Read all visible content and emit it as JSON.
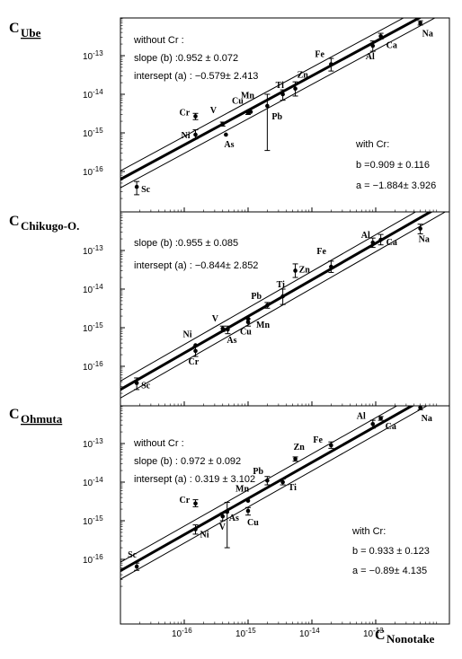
{
  "figure": {
    "xlabel_main": "C",
    "xlabel_sub": "Nonotake"
  },
  "chart_data": [
    {
      "type": "scatter",
      "ylabel_main": "C",
      "ylabel_sub": "Ube",
      "ylabel_underline": true,
      "x_scale": "log",
      "y_scale": "log",
      "xlim": [
        1e-17,
        1e-12
      ],
      "ylim": [
        1e-17,
        1e-12
      ],
      "x_tick_labels": [
        "10^-16",
        "10^-15",
        "10^-14",
        "10^-13"
      ],
      "y_tick_labels": [
        "10^-13",
        "10^-14",
        "10^-15",
        "10^-16"
      ],
      "annotations": [
        "without Cr :",
        "slope (b)      :0.952  ± 0.072",
        "intersept (a) : −0.579± 2.413",
        "with Cr:",
        "b =0.909  ± 0.116",
        "a = −1.884± 3.926"
      ],
      "points": [
        {
          "label": "Sc",
          "x": 1.8e-17,
          "y": 4e-17,
          "ylo": 2.5e-17,
          "yhi": 5.5e-17
        },
        {
          "label": "Ni",
          "x": 1.5e-16,
          "y": 9e-16,
          "ylo": 7e-16,
          "yhi": 1.2e-15
        },
        {
          "label": "Cr",
          "x": 1.5e-16,
          "y": 2.7e-15,
          "ylo": 2.2e-15,
          "yhi": 3.2e-15
        },
        {
          "label": "V",
          "x": 4e-16,
          "y": 1.7e-15,
          "ylo": 1.5e-15,
          "yhi": 1.9e-15
        },
        {
          "label": "As",
          "x": 4.5e-16,
          "y": 9e-16
        },
        {
          "label": "Cu",
          "x": 1e-15,
          "y": 3.3e-15,
          "ylo": 3e-15,
          "yhi": 3.6e-15
        },
        {
          "label": "Mn",
          "x": 1.1e-15,
          "y": 3.5e-15
        },
        {
          "label": "Pb",
          "x": 2e-15,
          "y": 5e-15,
          "ylo": 3.5e-16,
          "yhi": 1e-14
        },
        {
          "label": "Ti",
          "x": 3.5e-15,
          "y": 1e-14,
          "ylo": 7e-15,
          "yhi": 1.3e-14
        },
        {
          "label": "Zn",
          "x": 5.5e-15,
          "y": 1.4e-14,
          "ylo": 9e-15,
          "yhi": 2.1e-14
        },
        {
          "label": "Fe",
          "x": 2e-14,
          "y": 6e-14,
          "ylo": 4e-14,
          "yhi": 8.5e-14
        },
        {
          "label": "Al",
          "x": 9e-14,
          "y": 1.8e-13,
          "ylo": 1.3e-13,
          "yhi": 2.4e-13
        },
        {
          "label": "Ca",
          "x": 1.2e-13,
          "y": 3.2e-13,
          "ylo": 2.7e-13,
          "yhi": 3.8e-13
        },
        {
          "label": "Na",
          "x": 5e-13,
          "y": 7e-13,
          "ylo": 6.2e-13,
          "yhi": 8e-13
        }
      ]
    },
    {
      "type": "scatter",
      "ylabel_main": "C",
      "ylabel_sub": "Chikugo-O.",
      "ylabel_underline": false,
      "x_scale": "log",
      "y_scale": "log",
      "xlim": [
        1e-17,
        1e-12
      ],
      "ylim": [
        1e-17,
        1e-12
      ],
      "y_tick_labels": [
        "10^-13",
        "10^-14",
        "10^-15",
        "10^-16"
      ],
      "annotations": [
        "slope (b)      :0.955  ± 0.085",
        "intersept (a) : −0.844± 2.852"
      ],
      "points": [
        {
          "label": "Sc",
          "x": 1.8e-17,
          "y": 3.7e-17,
          "ylo": 2.5e-17,
          "yhi": 5e-17
        },
        {
          "label": "Cr",
          "x": 1.5e-16,
          "y": 2.5e-16,
          "ylo": 1.8e-16,
          "yhi": 3.3e-16
        },
        {
          "label": "Ni",
          "x": 1.5e-16,
          "y": 3.5e-16
        },
        {
          "label": "V",
          "x": 4e-16,
          "y": 9.5e-16,
          "ylo": 8e-16,
          "yhi": 1.1e-15
        },
        {
          "label": "As",
          "x": 4.8e-16,
          "y": 9e-16,
          "ylo": 7e-16,
          "yhi": 1.1e-15
        },
        {
          "label": "Cu",
          "x": 1e-15,
          "y": 1.4e-15,
          "ylo": 1.1e-15,
          "yhi": 1.7e-15
        },
        {
          "label": "Mn",
          "x": 1e-15,
          "y": 1.7e-15
        },
        {
          "label": "Pb",
          "x": 2e-15,
          "y": 3.8e-15,
          "ylo": 3.2e-15,
          "yhi": 4.5e-15
        },
        {
          "label": "Ti",
          "x": 3.5e-15,
          "y": 6.5e-15,
          "ylo": 4e-15,
          "yhi": 1e-14
        },
        {
          "label": "Zn",
          "x": 5.5e-15,
          "y": 3e-14,
          "ylo": 2e-14,
          "yhi": 4.5e-14
        },
        {
          "label": "Fe",
          "x": 2e-14,
          "y": 3.8e-14,
          "ylo": 2.7e-14,
          "yhi": 5.3e-14
        },
        {
          "label": "Al",
          "x": 9e-14,
          "y": 1.6e-13,
          "ylo": 1.2e-13,
          "yhi": 2.1e-13
        },
        {
          "label": "Ca",
          "x": 1.2e-13,
          "y": 1.9e-13,
          "ylo": 1.4e-13,
          "yhi": 2.6e-13
        },
        {
          "label": "Na",
          "x": 5e-13,
          "y": 3.7e-13,
          "ylo": 2.7e-13,
          "yhi": 4.8e-13
        }
      ]
    },
    {
      "type": "scatter",
      "ylabel_main": "C",
      "ylabel_sub": "Ohmuta",
      "ylabel_underline": true,
      "x_scale": "log",
      "y_scale": "log",
      "xlim": [
        1e-17,
        1e-12
      ],
      "ylim": [
        1e-17,
        1e-12
      ],
      "x_tick_labels": [
        "10^-16",
        "10^-15",
        "10^-14",
        "10^-13"
      ],
      "y_tick_labels": [
        "10^-13",
        "10^-14",
        "10^-15",
        "10^-16"
      ],
      "annotations": [
        "without Cr :",
        "slope (b)      :  0.972 ± 0.092",
        "intersept (a) :  0.319 ± 3.102",
        "with Cr:",
        "b = 0.933 ± 0.123",
        "a = −0.89±  4.135"
      ],
      "points": [
        {
          "label": "Sc",
          "x": 1.8e-17,
          "y": 6.5e-17,
          "ylo": 5.2e-17,
          "yhi": 8e-17
        },
        {
          "label": "Ni",
          "x": 1.5e-16,
          "y": 6e-16,
          "ylo": 4.5e-16,
          "yhi": 7.8e-16
        },
        {
          "label": "Cr",
          "x": 1.5e-16,
          "y": 2.8e-15,
          "ylo": 2.3e-15,
          "yhi": 3.5e-15
        },
        {
          "label": "V",
          "x": 4e-16,
          "y": 1.3e-15,
          "ylo": 1e-15,
          "yhi": 1.6e-15
        },
        {
          "label": "As",
          "x": 4.7e-16,
          "y": 1.7e-15,
          "ylo": 2e-16,
          "yhi": 3e-15
        },
        {
          "label": "Cu",
          "x": 1e-15,
          "y": 1.8e-15,
          "ylo": 1.4e-15,
          "yhi": 2.2e-15
        },
        {
          "label": "Mn",
          "x": 1e-15,
          "y": 3.3e-15
        },
        {
          "label": "Pb",
          "x": 2e-15,
          "y": 1.1e-14,
          "ylo": 8.5e-15,
          "yhi": 1.4e-14
        },
        {
          "label": "Ti",
          "x": 3.5e-15,
          "y": 1e-14,
          "ylo": 8.5e-15,
          "yhi": 1.2e-14
        },
        {
          "label": "Zn",
          "x": 5.5e-15,
          "y": 4e-14,
          "ylo": 3.5e-14,
          "yhi": 4.5e-14
        },
        {
          "label": "Fe",
          "x": 2e-14,
          "y": 9e-14,
          "ylo": 7.5e-14,
          "yhi": 1.1e-13
        },
        {
          "label": "Al",
          "x": 9e-14,
          "y": 3.2e-13,
          "ylo": 2.5e-13,
          "yhi": 4e-13
        },
        {
          "label": "Ca",
          "x": 1.2e-13,
          "y": 4.5e-13,
          "ylo": 4e-13,
          "yhi": 5e-13
        },
        {
          "label": "Na",
          "x": 5e-13,
          "y": 8.5e-13,
          "ylo": 7.5e-13,
          "yhi": 9.5e-13
        }
      ]
    }
  ]
}
